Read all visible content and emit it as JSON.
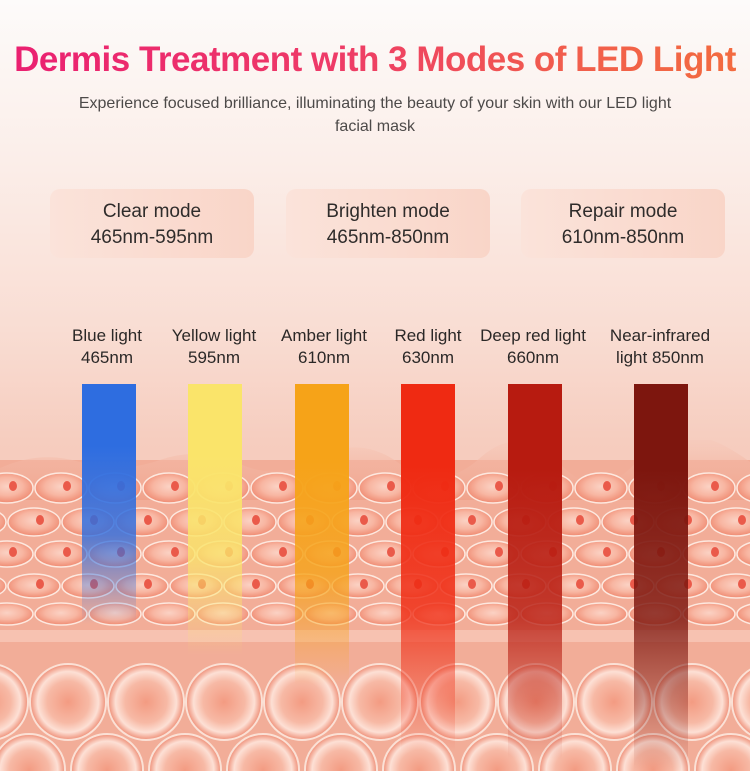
{
  "header": {
    "title": "Dermis Treatment with 3 Modes of LED Light",
    "subtitle": "Experience focused brilliance, illuminating the beauty of your skin with our LED light facial mask"
  },
  "modes": [
    {
      "name": "Clear mode",
      "range": "465nm-595nm"
    },
    {
      "name": "Brighten mode",
      "range": "465nm-850nm"
    },
    {
      "name": "Repair mode",
      "range": "610nm-850nm"
    }
  ],
  "lights": [
    {
      "name": "Blue light",
      "wavelength": "465nm",
      "color": "#2e6de0"
    },
    {
      "name": "Yellow light",
      "wavelength": "595nm",
      "color": "#fae46a"
    },
    {
      "name": "Amber light",
      "wavelength": "610nm",
      "color": "#f6a318"
    },
    {
      "name": "Red light",
      "wavelength": "630nm",
      "color": "#ef2a12"
    },
    {
      "name": "Deep red light",
      "wavelength": "660nm",
      "color": "#b71b10"
    },
    {
      "name": "Near-infrared",
      "wavelength": "light 850nm",
      "color": "#7d160e"
    }
  ],
  "colors": {
    "title_start": "#ea1f71",
    "title_end": "#f36c3e",
    "skin": "#f3a48f"
  }
}
